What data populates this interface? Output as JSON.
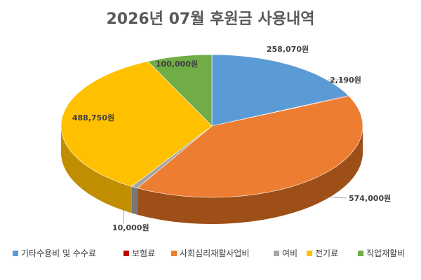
{
  "chart_data": {
    "type": "pie",
    "title": "2026년 07월 후원금 사용내역",
    "legend_position": "bottom",
    "slices": [
      {
        "name": "기타수용비 및 수수료",
        "value": 258070,
        "label": "258,070원",
        "color": "#5B9BD5",
        "side": "#3F73A3"
      },
      {
        "name": "보험료",
        "value": 2190,
        "label": "2,190원",
        "color": "#C00000",
        "side": "#8A0000"
      },
      {
        "name": "사회심리재활사업비",
        "value": 574000,
        "label": "574,000원",
        "color": "#ED7D31",
        "side": "#9E4E17"
      },
      {
        "name": "여비",
        "value": 10000,
        "label": "10,000원",
        "color": "#A5A5A5",
        "side": "#777777"
      },
      {
        "name": "전기료",
        "value": 488750,
        "label": "488,750원",
        "color": "#FFC000",
        "side": "#C08E00"
      },
      {
        "name": "직업재활비",
        "value": 100000,
        "label": "100,000원",
        "color": "#70AD47",
        "side": "#4E7F31"
      }
    ]
  }
}
